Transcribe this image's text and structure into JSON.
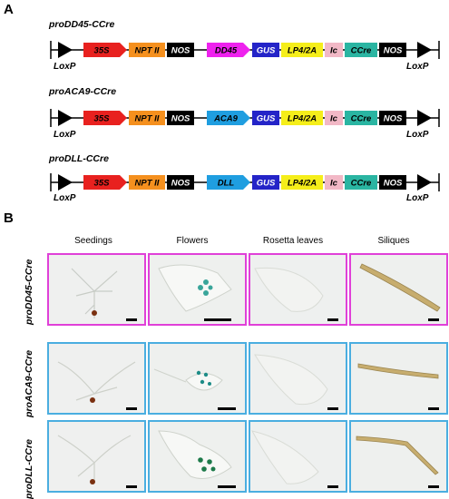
{
  "panels": {
    "a": "A",
    "b": "B"
  },
  "constructs": [
    {
      "title": "proDD45-CCre",
      "loxp_left": "LoxP",
      "loxp_right": "LoxP",
      "elements": [
        "35S",
        "NPT II",
        "NOS",
        "DD45",
        "GUS",
        "LP4/2A",
        "Ic",
        "CCre",
        "NOS"
      ],
      "promoter_color": "#ee22ee"
    },
    {
      "title": "proACA9-CCre",
      "loxp_left": "LoxP",
      "loxp_right": "LoxP",
      "elements": [
        "35S",
        "NPT II",
        "NOS",
        "ACA9",
        "GUS",
        "LP4/2A",
        "Ic",
        "CCre",
        "NOS"
      ],
      "promoter_color": "#1f9ee0"
    },
    {
      "title": "proDLL-CCre",
      "loxp_left": "LoxP",
      "loxp_right": "LoxP",
      "elements": [
        "35S",
        "NPT II",
        "NOS",
        "DLL",
        "GUS",
        "LP4/2A",
        "Ic",
        "CCre",
        "NOS"
      ],
      "promoter_color": "#1f9ee0"
    }
  ],
  "colors": {
    "35S": "#e8211f",
    "NPT II": "#f5901e",
    "NOS": "#000000",
    "GUS": "#2424c8",
    "LP4/2A": "#f5ee1a",
    "Ic": "#f2b8c6",
    "CCre": "#2ab5a2",
    "frame_magenta": "#e040d8",
    "frame_blue": "#4aaee0"
  },
  "columns": [
    "Seedings",
    "Flowers",
    "Rosetta leaves",
    "Siliques"
  ],
  "rows": [
    {
      "label": "proDD45-CCre",
      "frame": "magenta"
    },
    {
      "label": "proACA9-CCre",
      "frame": "blue"
    },
    {
      "label": "proDLL-CCre",
      "frame": "blue"
    }
  ]
}
